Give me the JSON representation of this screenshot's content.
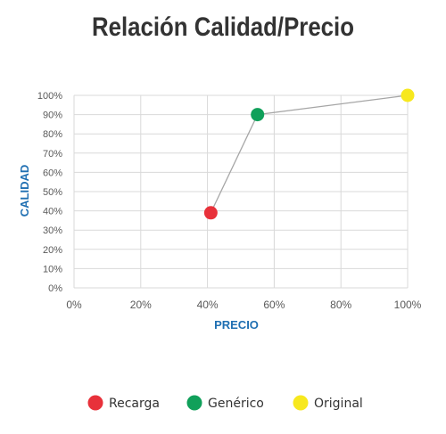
{
  "chart_data": {
    "type": "scatter",
    "title": "Relación Calidad/Precio",
    "xlabel": "PRECIO",
    "ylabel": "CALIDAD",
    "xlim": [
      0,
      100
    ],
    "ylim": [
      0,
      100
    ],
    "x_ticks": [
      "0%",
      "20%",
      "40%",
      "60%",
      "80%",
      "100%"
    ],
    "y_ticks": [
      "0%",
      "10%",
      "20%",
      "30%",
      "40%",
      "50%",
      "60%",
      "70%",
      "80%",
      "90%",
      "100%"
    ],
    "grid": true,
    "connected_line": true,
    "legend_position": "bottom",
    "series": [
      {
        "name": "Recarga",
        "x": [
          41
        ],
        "y": [
          39
        ],
        "color": "#e8313a"
      },
      {
        "name": "Genérico",
        "x": [
          55
        ],
        "y": [
          90
        ],
        "color": "#10a05a"
      },
      {
        "name": "Original",
        "x": [
          100
        ],
        "y": [
          100
        ],
        "color": "#f7e81e"
      }
    ]
  }
}
